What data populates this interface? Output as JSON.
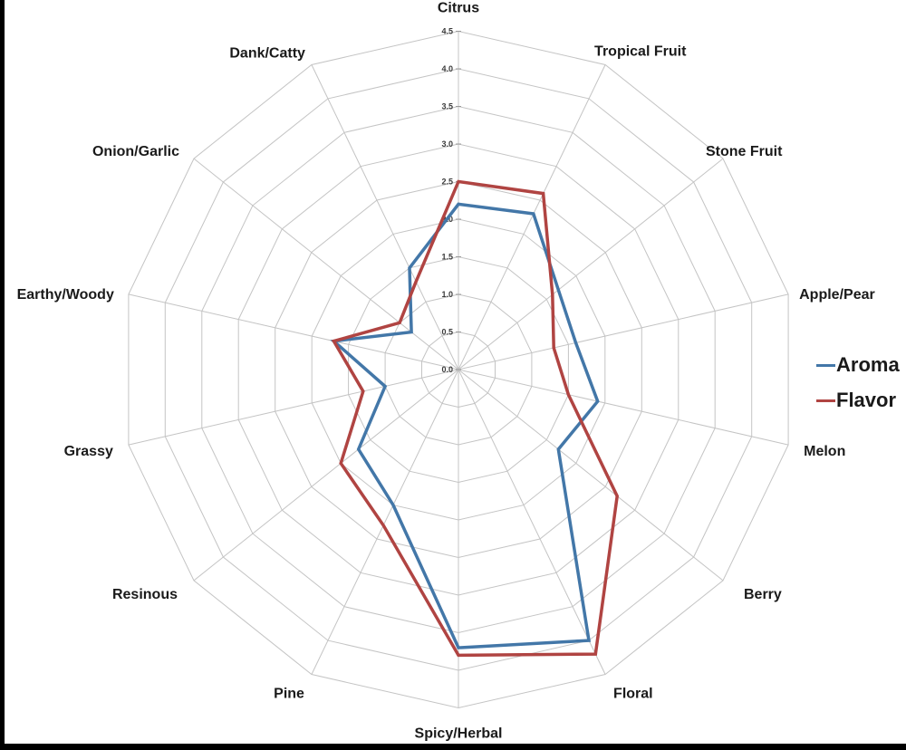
{
  "page": {
    "background_color": "#ffffff",
    "left_bar_color": "#000000",
    "bottom_bar_color": "#000000"
  },
  "legend": {
    "items": [
      {
        "label": "Aroma",
        "color": "#4377a8"
      },
      {
        "label": "Flavor",
        "color": "#b04442"
      }
    ]
  },
  "chart_data": {
    "type": "radar",
    "title": "",
    "categories": [
      "Citrus",
      "Tropical Fruit",
      "Stone Fruit",
      "Apple/Pear",
      "Melon",
      "Berry",
      "Floral",
      "Spicy/Herbal",
      "Pine",
      "Resinous",
      "Grassy",
      "Earthy/Woody",
      "Onion/Garlic",
      "Dank/Catty"
    ],
    "series": [
      {
        "name": "Aroma",
        "color": "#4377a8",
        "values": [
          2.2,
          2.3,
          1.7,
          1.6,
          1.9,
          1.7,
          4.0,
          3.7,
          2.0,
          1.7,
          1.0,
          1.7,
          0.8,
          1.5
        ]
      },
      {
        "name": "Flavor",
        "color": "#b04442",
        "values": [
          2.5,
          2.6,
          1.6,
          1.3,
          1.5,
          2.7,
          4.2,
          3.8,
          2.3,
          2.0,
          1.3,
          1.7,
          1.0,
          1.3
        ]
      }
    ],
    "axis": {
      "min": 0.0,
      "max": 4.5,
      "step": 0.5,
      "tick_labels": [
        "0.0",
        "0.5",
        "1.0",
        "1.5",
        "2.0",
        "2.5",
        "3.0",
        "3.5",
        "4.0",
        "4.5"
      ]
    },
    "grid": true,
    "grid_color": "#c4c4c4",
    "category_label_color": "#1a1a1a",
    "tick_label_color": "#3a3a3a",
    "legend_position": "right"
  }
}
